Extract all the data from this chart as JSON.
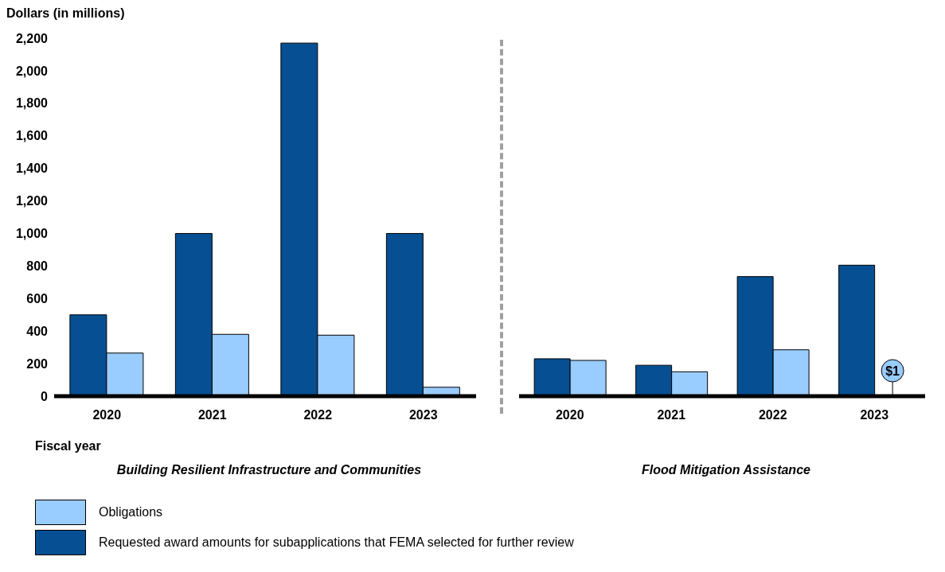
{
  "chart_data": [
    {
      "type": "bar",
      "title": "Building Resilient Infrastructure and Communities",
      "ylabel": "Dollars (in millions)",
      "xlabel": "Fiscal year",
      "categories": [
        "2020",
        "2021",
        "2022",
        "2023"
      ],
      "ylim": [
        0,
        2200
      ],
      "yticks": [
        0,
        {
          "value": 200,
          "label": "200"
        },
        {
          "value": 400,
          "label": "400"
        },
        {
          "value": 600,
          "label": "600"
        },
        {
          "value": 800,
          "label": "800"
        },
        {
          "value": 1000,
          "label": "1,000"
        },
        {
          "value": 1200,
          "label": "1,200"
        },
        {
          "value": 1400,
          "label": "1,400"
        },
        {
          "value": 1600,
          "label": "1,600"
        },
        {
          "value": 1800,
          "label": "1,800"
        },
        {
          "value": 2000,
          "label": "2,000"
        },
        {
          "value": 2200,
          "label": "2,200"
        }
      ],
      "grid": false,
      "legend": "bottom",
      "series": [
        {
          "name": "Requested award amounts for subapplications that FEMA selected for further review",
          "color": "#054f92",
          "values": [
            500,
            1000,
            2170,
            1000
          ]
        },
        {
          "name": "Obligations",
          "color": "#99ccff",
          "values": [
            265,
            380,
            375,
            55
          ]
        }
      ]
    },
    {
      "type": "bar",
      "title": "Flood Mitigation Assistance",
      "categories": [
        "2020",
        "2021",
        "2022",
        "2023"
      ],
      "ylim": [
        0,
        2200
      ],
      "tick_labels": "x",
      "grid": false,
      "series": [
        {
          "color": "#054f92",
          "values": [
            230,
            190,
            735,
            805
          ]
        },
        {
          "color": "#99ccff",
          "values": [
            220,
            150,
            285,
            1
          ],
          "value_labels": [
            null,
            null,
            null,
            "$1"
          ]
        }
      ]
    }
  ]
}
